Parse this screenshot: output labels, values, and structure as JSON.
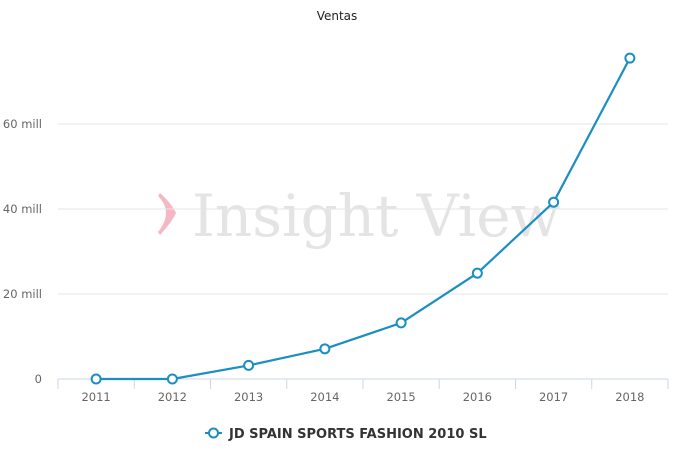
{
  "chart_data": {
    "type": "line",
    "title": "Ventas",
    "xlabel": "",
    "ylabel": "",
    "categories": [
      "2011",
      "2012",
      "2013",
      "2014",
      "2015",
      "2016",
      "2017",
      "2018"
    ],
    "series": [
      {
        "name": "JD SPAIN SPORTS FASHION 2010 SL",
        "values": [
          0,
          0,
          3.2,
          7.1,
          13.2,
          24.9,
          41.6,
          75.5
        ],
        "color": "#1b8ec2"
      }
    ],
    "yticks": [
      {
        "value": 0,
        "label": "0"
      },
      {
        "value": 20,
        "label": "20 mill"
      },
      {
        "value": 40,
        "label": "40 mill"
      },
      {
        "value": 60,
        "label": "60 mill"
      }
    ],
    "ylim": [
      0,
      80
    ],
    "unit": "millones",
    "grid": true,
    "legend_position": "bottom",
    "watermark": "Insight View",
    "watermark_accent": "#f4b8c3"
  }
}
